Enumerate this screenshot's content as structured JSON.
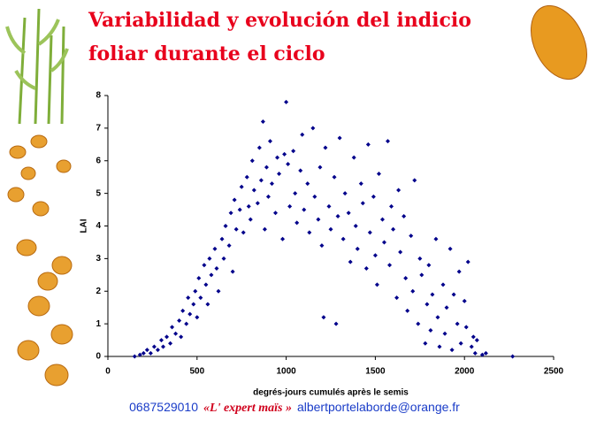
{
  "chart_data": {
    "type": "scatter",
    "title": "Variabilidad y evolución del indicio foliar durante el ciclo",
    "x_label": "degrés-jours cumulés après le semis",
    "y_label": "LAI",
    "color": "#00008b",
    "xlim": [
      0,
      2500
    ],
    "xticks": [
      0,
      500,
      1000,
      1500,
      2000,
      2500
    ],
    "ylim": [
      0,
      8
    ],
    "yticks": [
      0,
      1,
      2,
      3,
      4,
      5,
      6,
      7,
      8
    ],
    "x": [
      150,
      180,
      200,
      220,
      240,
      260,
      280,
      300,
      310,
      330,
      350,
      360,
      380,
      400,
      410,
      420,
      440,
      450,
      460,
      480,
      490,
      500,
      510,
      520,
      540,
      550,
      560,
      570,
      580,
      600,
      610,
      620,
      640,
      650,
      660,
      680,
      690,
      700,
      710,
      720,
      740,
      750,
      760,
      780,
      790,
      800,
      810,
      820,
      840,
      850,
      860,
      870,
      880,
      890,
      900,
      910,
      920,
      940,
      950,
      960,
      980,
      990,
      1000,
      1010,
      1020,
      1040,
      1050,
      1060,
      1080,
      1090,
      1100,
      1120,
      1130,
      1150,
      1160,
      1180,
      1190,
      1200,
      1210,
      1220,
      1240,
      1250,
      1270,
      1280,
      1290,
      1300,
      1320,
      1330,
      1350,
      1360,
      1380,
      1390,
      1400,
      1420,
      1430,
      1450,
      1460,
      1470,
      1490,
      1500,
      1510,
      1520,
      1540,
      1550,
      1570,
      1580,
      1590,
      1600,
      1620,
      1630,
      1640,
      1660,
      1670,
      1680,
      1700,
      1710,
      1720,
      1740,
      1750,
      1760,
      1780,
      1790,
      1800,
      1810,
      1820,
      1840,
      1850,
      1860,
      1880,
      1890,
      1900,
      1920,
      1930,
      1940,
      1960,
      1970,
      1980,
      2000,
      2010,
      2020,
      2040,
      2050,
      2060,
      2070,
      2100,
      2120,
      2270
    ],
    "values": [
      0,
      0.05,
      0.1,
      0.2,
      0.1,
      0.3,
      0.2,
      0.5,
      0.3,
      0.6,
      0.4,
      0.9,
      0.7,
      1.1,
      0.6,
      1.4,
      1.0,
      1.8,
      1.3,
      1.6,
      2.0,
      1.2,
      2.4,
      1.8,
      2.8,
      2.2,
      1.6,
      3.0,
      2.5,
      3.3,
      2.7,
      2.0,
      3.6,
      3.0,
      4.0,
      3.4,
      4.4,
      2.6,
      4.8,
      3.9,
      4.5,
      5.2,
      3.8,
      5.5,
      4.6,
      4.2,
      6.0,
      5.1,
      4.7,
      6.4,
      5.4,
      7.2,
      3.9,
      5.8,
      4.9,
      6.6,
      5.3,
      4.4,
      6.1,
      5.6,
      3.6,
      6.2,
      7.8,
      5.9,
      4.6,
      6.3,
      5.0,
      4.1,
      5.7,
      6.8,
      4.5,
      5.3,
      3.8,
      7.0,
      4.9,
      4.2,
      5.8,
      3.4,
      1.2,
      6.4,
      4.6,
      3.9,
      5.5,
      1.0,
      4.3,
      6.7,
      3.6,
      5.0,
      4.4,
      2.9,
      6.1,
      4.0,
      3.3,
      5.3,
      4.7,
      2.7,
      6.5,
      3.8,
      4.9,
      3.1,
      2.2,
      5.6,
      4.2,
      3.5,
      6.6,
      2.8,
      4.6,
      3.9,
      1.8,
      5.1,
      3.2,
      4.3,
      2.4,
      1.4,
      3.7,
      2.0,
      5.4,
      1.0,
      3.0,
      2.5,
      0.4,
      1.6,
      2.8,
      0.8,
      1.9,
      3.6,
      1.2,
      0.3,
      2.2,
      0.7,
      1.5,
      3.3,
      0.2,
      1.9,
      1.0,
      2.6,
      0.4,
      1.7,
      0.9,
      2.9,
      0.3,
      0.6,
      0.1,
      0.5,
      0.05,
      0.1,
      0
    ]
  },
  "footer": {
    "phone": "0687529010",
    "brand": "«L' expert maïs »",
    "email": "albertportelaborde@orange.fr"
  }
}
